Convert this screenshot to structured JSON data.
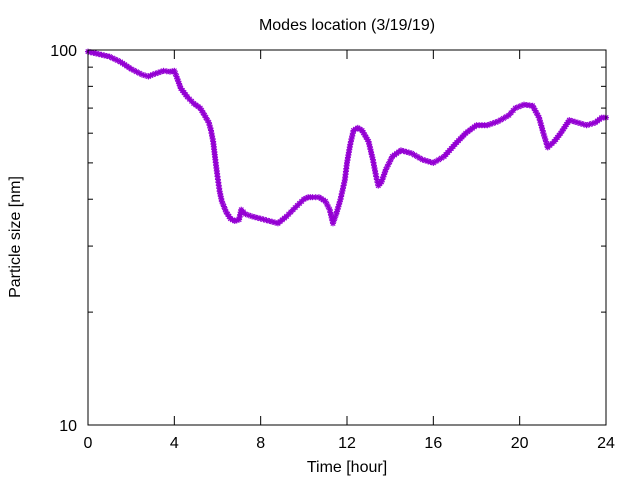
{
  "chart_data": {
    "type": "scatter",
    "title": "Modes location (3/19/19)",
    "xlabel": "Time [hour]",
    "ylabel": "Particle size [nm]",
    "xlim": [
      0,
      24
    ],
    "ylim": [
      10,
      100
    ],
    "yscale": "log",
    "grid": false,
    "legend": "none",
    "marker": "asterisk",
    "series_color": "#9400d3",
    "x_ticks": [
      0,
      4,
      8,
      12,
      16,
      20,
      24
    ],
    "x_tick_labels": [
      "0",
      "4",
      "8",
      "12",
      "16",
      "20",
      "24"
    ],
    "y_major_ticks": [
      10,
      100
    ],
    "y_tick_labels": [
      "10",
      "100"
    ],
    "y_minor_ticks": [
      20,
      30,
      40,
      50,
      60,
      70,
      80,
      90
    ],
    "series": [
      {
        "x": [
          0,
          0.5,
          1,
          1.5,
          2,
          2.5,
          2.8,
          3,
          3.5,
          3.8,
          4,
          4.1,
          4.3,
          4.6,
          4.9,
          5.2,
          5.4,
          5.6,
          5.7,
          5.8,
          5.9,
          6.0,
          6.1,
          6.2,
          6.4,
          6.6,
          6.8,
          7.0,
          7.1,
          7.3,
          7.6,
          8.0,
          8.4,
          8.8,
          9.2,
          9.6,
          10.0,
          10.2,
          10.4,
          10.7,
          11.0,
          11.2,
          11.35,
          11.5,
          11.7,
          11.9,
          12.0,
          12.15,
          12.3,
          12.5,
          12.7,
          13.0,
          13.2,
          13.35,
          13.45,
          13.6,
          13.8,
          14.1,
          14.5,
          15.0,
          15.5,
          16.0,
          16.5,
          17.0,
          17.5,
          18.0,
          18.5,
          19.0,
          19.5,
          19.8,
          20.2,
          20.6,
          20.9,
          21.1,
          21.3,
          21.6,
          21.9,
          22.3,
          22.7,
          23.1,
          23.5,
          23.8,
          24.0
        ],
        "y": [
          99,
          97.5,
          96,
          93,
          89,
          86,
          85,
          86,
          88,
          87.5,
          88,
          85,
          79,
          75,
          72,
          70,
          67,
          64,
          61,
          57,
          51,
          46,
          42,
          39.5,
          37,
          35.5,
          35,
          35.3,
          37.5,
          36.5,
          36,
          35.5,
          35,
          34.5,
          36,
          38,
          40,
          40.5,
          40.5,
          40.5,
          39.5,
          37.5,
          34.5,
          36.5,
          40,
          45,
          50,
          56,
          61,
          62,
          61,
          57,
          51,
          46,
          43.5,
          44.5,
          48,
          52,
          54,
          53,
          51,
          50,
          52,
          56,
          60,
          63,
          63,
          64.5,
          67,
          70,
          71.5,
          71,
          66,
          60,
          55,
          57,
          60,
          65,
          64,
          63,
          64,
          66,
          66
        ]
      }
    ]
  }
}
